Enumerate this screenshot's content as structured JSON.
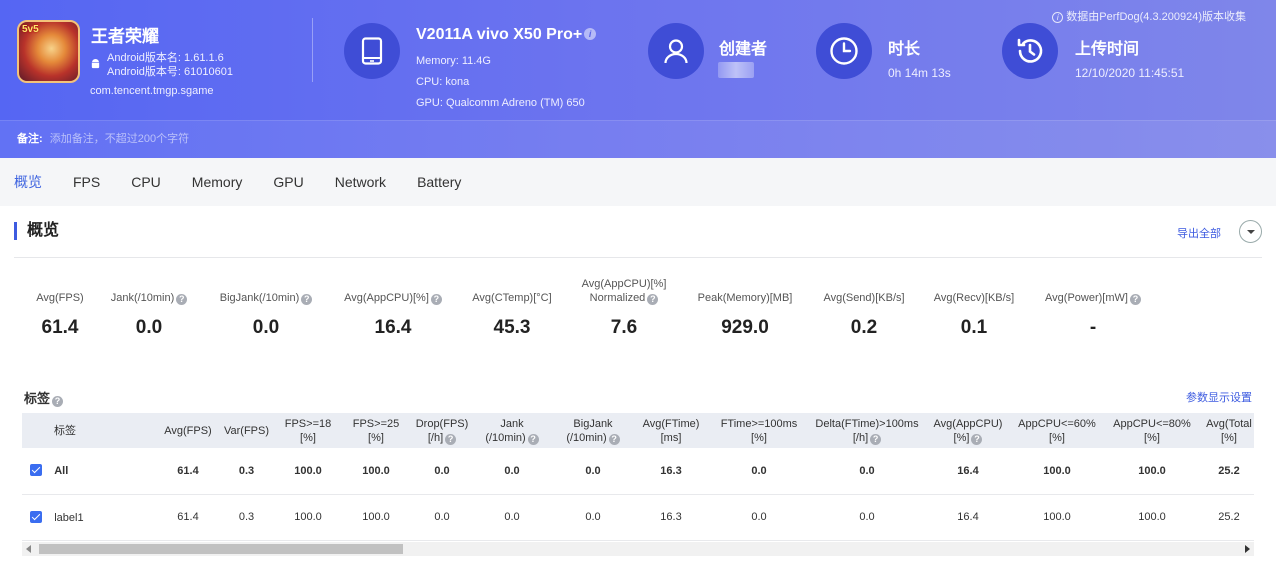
{
  "header": {
    "app": {
      "name": "王者荣耀",
      "icon_badge": "5v5",
      "version_name": "Android版本名: 1.61.1.6",
      "version_code": "Android版本号: 61010601",
      "package": "com.tencent.tmgp.sgame"
    },
    "device": {
      "name": "V2011A vivo X50 Pro+",
      "memory": "Memory: 11.4G",
      "cpu": "CPU: kona",
      "gpu": "GPU: Qualcomm Adreno (TM) 650"
    },
    "creator": {
      "title": "创建者"
    },
    "duration": {
      "title": "时长",
      "value": "0h 14m 13s"
    },
    "upload": {
      "title": "上传时间",
      "value": "12/10/2020 11:45:51"
    },
    "source_note": "数据由PerfDog(4.3.200924)版本收集",
    "note": {
      "label": "备注:",
      "placeholder": "添加备注，不超过200个字符"
    },
    "colors": {
      "banner_start": "#5566f3",
      "banner_end": "#7f86ea",
      "icon_circle": "#3f4dd6"
    }
  },
  "tabs": [
    {
      "label": "概览",
      "active": true
    },
    {
      "label": "FPS"
    },
    {
      "label": "CPU"
    },
    {
      "label": "Memory"
    },
    {
      "label": "GPU"
    },
    {
      "label": "Network"
    },
    {
      "label": "Battery"
    }
  ],
  "overview": {
    "title": "概览",
    "export_label": "导出全部",
    "metrics": [
      {
        "label": "Avg(FPS)",
        "value": "61.4"
      },
      {
        "label": "Jank(/10min)",
        "value": "0.0",
        "help": true
      },
      {
        "label": "BigJank(/10min)",
        "value": "0.0",
        "help": true
      },
      {
        "label": "Avg(AppCPU)[%]",
        "value": "16.4",
        "help": true
      },
      {
        "label": "Avg(CTemp)[°C]",
        "value": "45.3"
      },
      {
        "label": "Avg(AppCPU)[%]",
        "label2": "Normalized",
        "value": "7.6",
        "help": true
      },
      {
        "label": "Peak(Memory)[MB]",
        "value": "929.0"
      },
      {
        "label": "Avg(Send)[KB/s]",
        "value": "0.2"
      },
      {
        "label": "Avg(Recv)[KB/s]",
        "value": "0.1"
      },
      {
        "label": "Avg(Power)[mW]",
        "value": "-",
        "help": true
      }
    ]
  },
  "labels_table": {
    "title": "标签",
    "settings_label": "参数显示设置",
    "columns": [
      {
        "l1": "标签"
      },
      {
        "l1": "Avg(FPS)"
      },
      {
        "l1": "Var(FPS)"
      },
      {
        "l1": "FPS>=18",
        "l2": "[%]"
      },
      {
        "l1": "FPS>=25",
        "l2": "[%]"
      },
      {
        "l1": "Drop(FPS)",
        "l2": "[/h]",
        "help": true
      },
      {
        "l1": "Jank",
        "l2": "(/10min)",
        "help": true
      },
      {
        "l1": "BigJank",
        "l2": "(/10min)",
        "help": true
      },
      {
        "l1": "Avg(FTime)",
        "l2": "[ms]"
      },
      {
        "l1": "FTime>=100ms",
        "l2": "[%]"
      },
      {
        "l1": "Delta(FTime)>100ms",
        "l2": "[/h]",
        "help": true
      },
      {
        "l1": "Avg(AppCPU)",
        "l2": "[%]",
        "help": true
      },
      {
        "l1": "AppCPU<=60%",
        "l2": "[%]"
      },
      {
        "l1": "AppCPU<=80%",
        "l2": "[%]"
      },
      {
        "l1": "Avg(Total",
        "l2": "[%]"
      }
    ],
    "rows": [
      {
        "name": "All",
        "bold": true,
        "values": [
          "61.4",
          "0.3",
          "100.0",
          "100.0",
          "0.0",
          "0.0",
          "0.0",
          "16.3",
          "0.0",
          "0.0",
          "16.4",
          "100.0",
          "100.0",
          "25.2"
        ]
      },
      {
        "name": "label1",
        "bold": false,
        "values": [
          "61.4",
          "0.3",
          "100.0",
          "100.0",
          "0.0",
          "0.0",
          "0.0",
          "16.3",
          "0.0",
          "0.0",
          "16.4",
          "100.0",
          "100.0",
          "25.2"
        ]
      }
    ]
  }
}
